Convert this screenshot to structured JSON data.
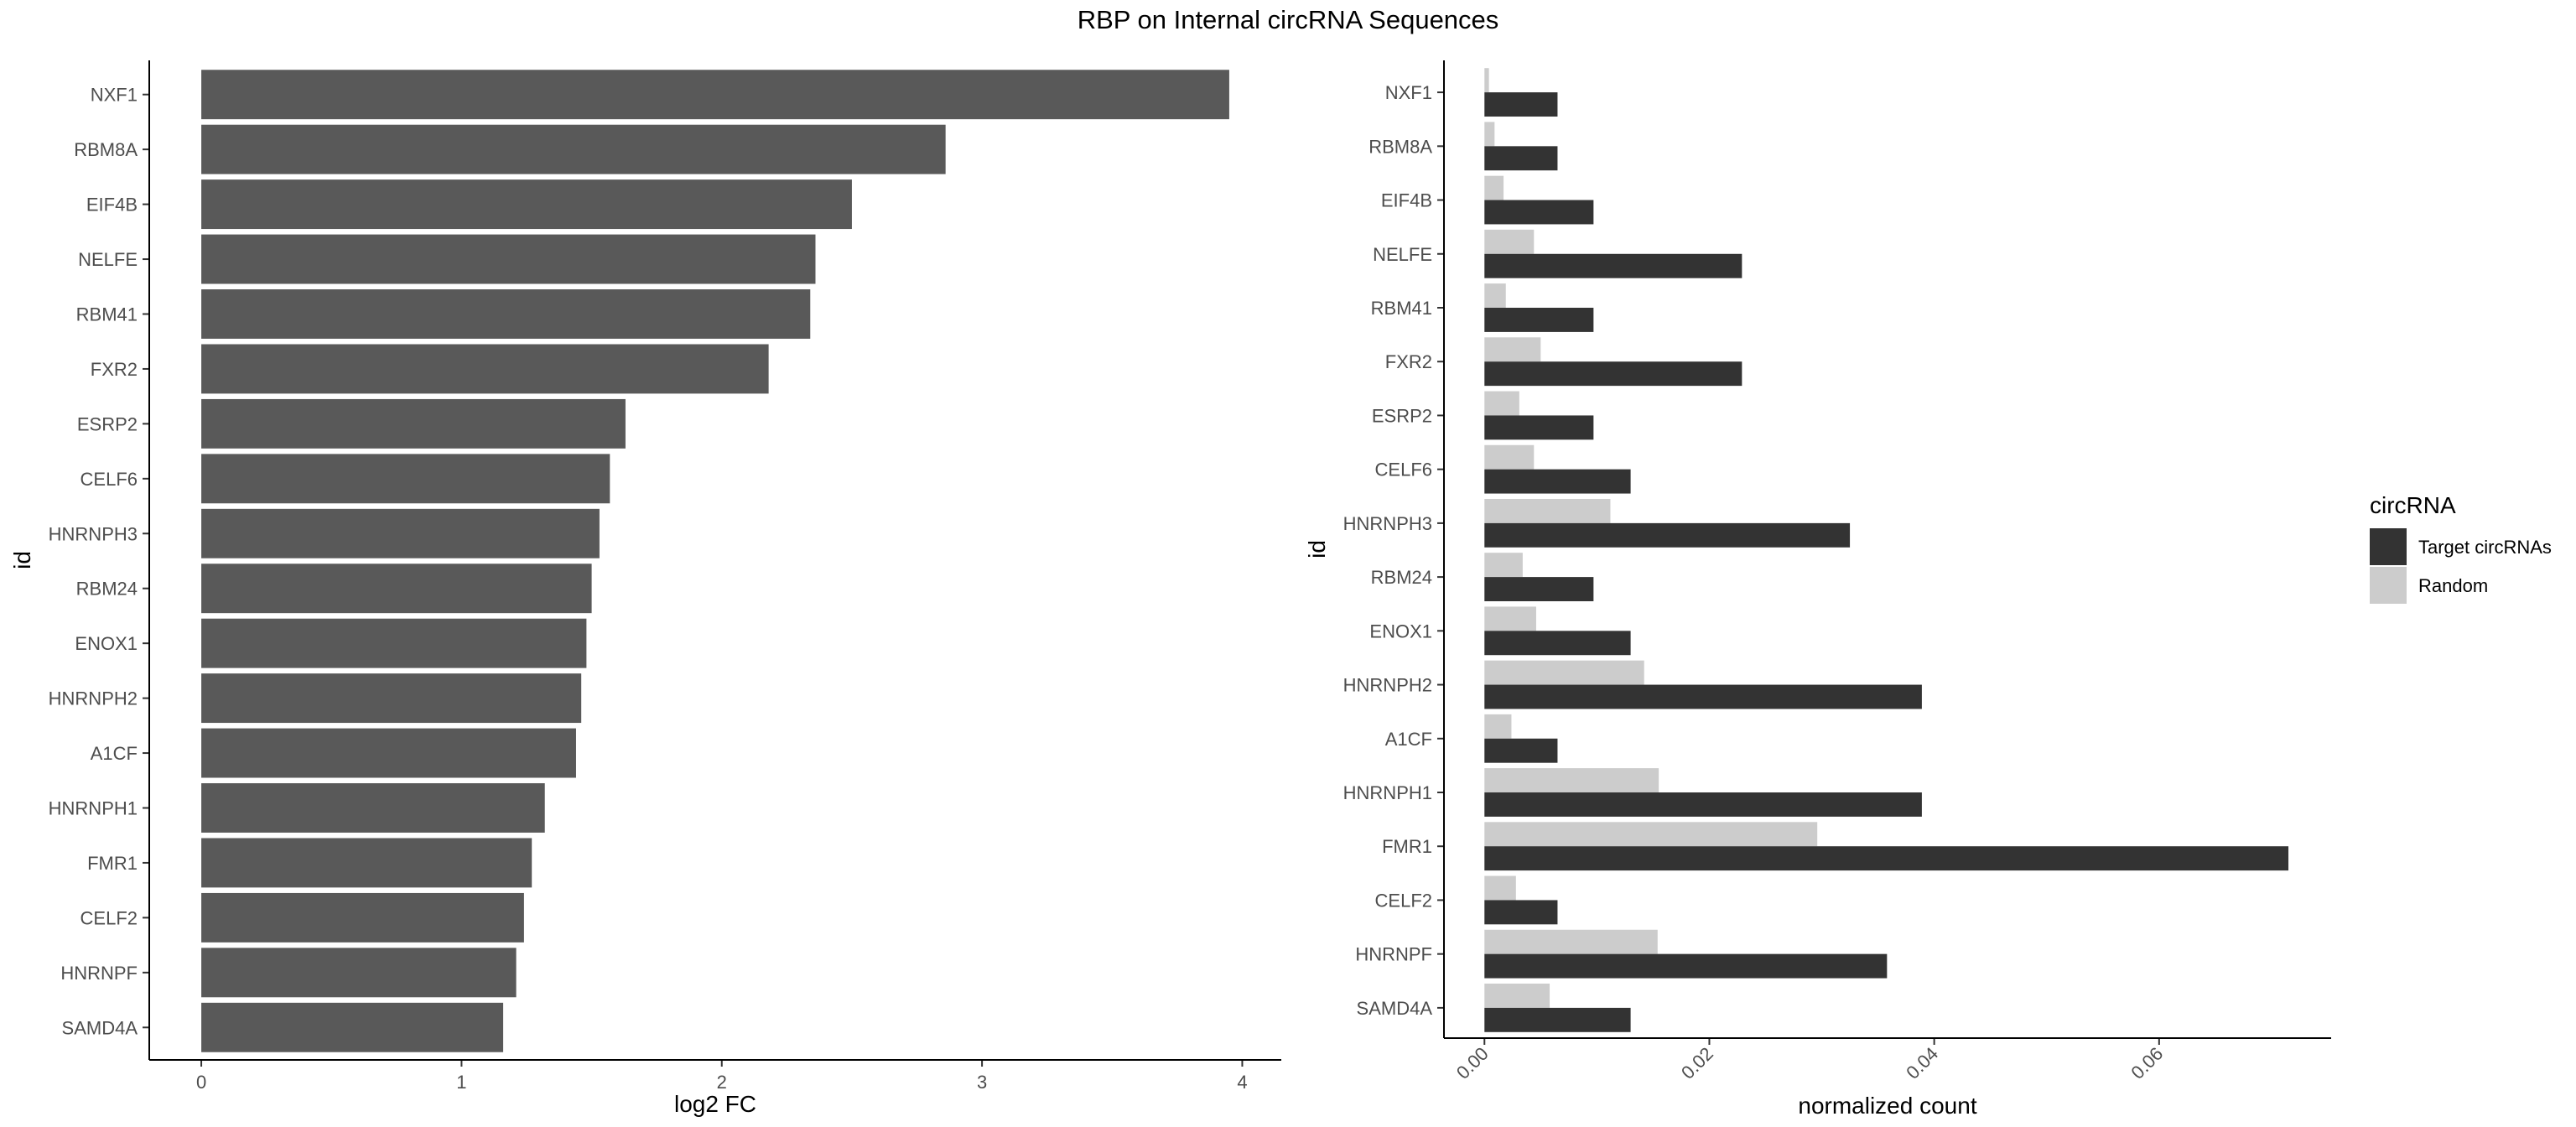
{
  "title": "RBP on Internal circRNA Sequences",
  "chart_data": [
    {
      "type": "bar",
      "orientation": "horizontal",
      "categories": [
        "NXF1",
        "RBM8A",
        "EIF4B",
        "NELFE",
        "RBM41",
        "FXR2",
        "ESRP2",
        "CELF6",
        "HNRNPH3",
        "RBM24",
        "ENOX1",
        "HNRNPH2",
        "A1CF",
        "HNRNPH1",
        "FMR1",
        "CELF2",
        "HNRNPF",
        "SAMD4A"
      ],
      "values": [
        3.95,
        2.86,
        2.5,
        2.36,
        2.34,
        2.18,
        1.63,
        1.57,
        1.53,
        1.5,
        1.48,
        1.46,
        1.44,
        1.32,
        1.27,
        1.24,
        1.21,
        1.16
      ],
      "xlabel": "log2 FC",
      "ylabel": "id",
      "xlim": [
        -0.2,
        4.15
      ],
      "x_ticks": [
        "0",
        "1",
        "2",
        "3",
        "4"
      ],
      "bar_color": "#595959",
      "grid": false
    },
    {
      "type": "bar",
      "orientation": "horizontal",
      "grouped": true,
      "categories": [
        "NXF1",
        "RBM8A",
        "EIF4B",
        "NELFE",
        "RBM41",
        "FXR2",
        "ESRP2",
        "CELF6",
        "HNRNPH3",
        "RBM24",
        "ENOX1",
        "HNRNPH2",
        "A1CF",
        "HNRNPH1",
        "FMR1",
        "CELF2",
        "HNRNPF",
        "SAMD4A"
      ],
      "series": [
        {
          "name": "Target circRNAs",
          "color": "#333333",
          "values": [
            0.0065,
            0.0065,
            0.0097,
            0.0229,
            0.0097,
            0.0229,
            0.0097,
            0.013,
            0.0325,
            0.0097,
            0.013,
            0.0389,
            0.0065,
            0.0389,
            0.0715,
            0.0065,
            0.0358,
            0.013
          ]
        },
        {
          "name": "Random",
          "color": "#cccccc",
          "values": [
            0.0004,
            0.0009,
            0.0017,
            0.0044,
            0.0019,
            0.005,
            0.0031,
            0.0044,
            0.0112,
            0.0034,
            0.0046,
            0.0142,
            0.0024,
            0.0155,
            0.0296,
            0.0028,
            0.0154,
            0.0058
          ]
        }
      ],
      "xlabel": "normalized count",
      "ylabel": "id",
      "xlim": [
        -0.0036,
        0.0753
      ],
      "x_ticks": [
        "0.00",
        "0.02",
        "0.04",
        "0.06"
      ],
      "legend": {
        "title": "circRNA",
        "position": "right"
      },
      "grid": false
    }
  ]
}
